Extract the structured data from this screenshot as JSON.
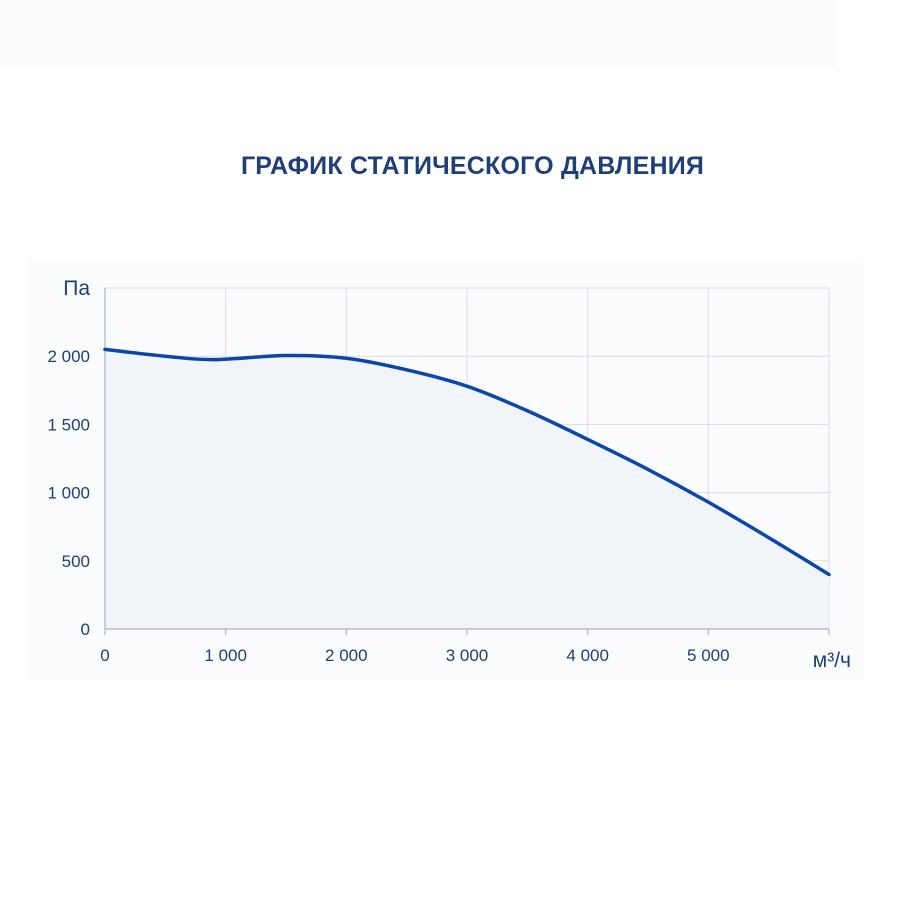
{
  "chart_data": {
    "type": "area",
    "title": "ГРАФИК СТАТИЧЕСКОГО ДАВЛЕНИЯ",
    "ylabel": "Па",
    "xlabel": "м³/ч",
    "xlim": [
      0,
      6000
    ],
    "ylim": [
      0,
      2500
    ],
    "grid": true,
    "x_ticks": [
      {
        "value": 0,
        "label": "0"
      },
      {
        "value": 1000,
        "label": "1 000"
      },
      {
        "value": 2000,
        "label": "2 000"
      },
      {
        "value": 3000,
        "label": "3 000"
      },
      {
        "value": 4000,
        "label": "4 000"
      },
      {
        "value": 5000,
        "label": "5 000"
      }
    ],
    "y_ticks": [
      {
        "value": 0,
        "label": "0"
      },
      {
        "value": 500,
        "label": "500"
      },
      {
        "value": 1000,
        "label": "1 000"
      },
      {
        "value": 1500,
        "label": "1 500"
      },
      {
        "value": 2000,
        "label": "2 000"
      }
    ],
    "series": [
      {
        "x": [
          0,
          500,
          900,
          1500,
          2000,
          2500,
          3000,
          3500,
          4000,
          4500,
          5000,
          5500,
          6000
        ],
        "values": [
          2050,
          2000,
          1975,
          2005,
          1985,
          1900,
          1780,
          1600,
          1390,
          1170,
          930,
          670,
          400
        ]
      }
    ],
    "colors": {
      "line": "#0a47a9",
      "area": "#f1f4f9",
      "grid": "#d9dde4",
      "axis": "#a9b4c6",
      "text": "#1f3f77"
    }
  }
}
